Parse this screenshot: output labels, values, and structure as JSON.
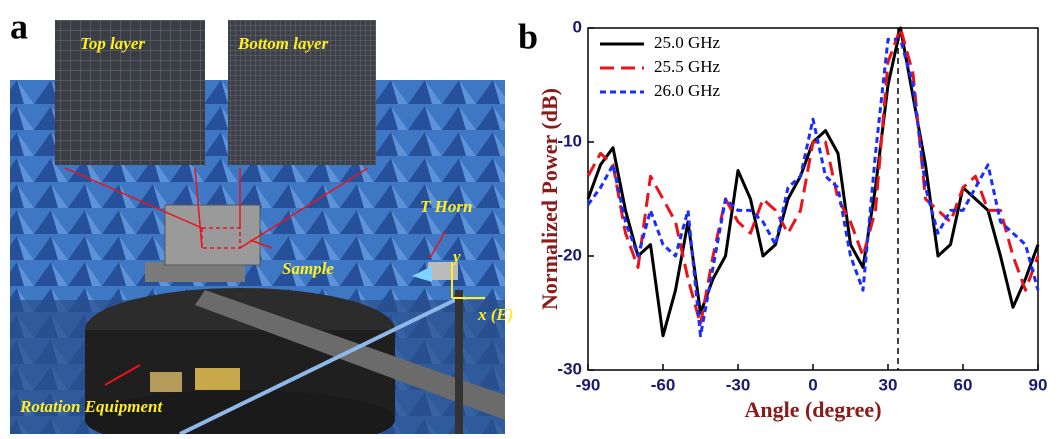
{
  "panel_a": {
    "label": "a",
    "top_label": "Top layer",
    "bottom_label": "Bottom layer",
    "sample": "Sample",
    "horn": "T Horn",
    "y_axis": "y",
    "x_axis": "x (E)",
    "rotation": "Rotation Equipment"
  },
  "chart_data": {
    "type": "line",
    "panel_label": "b",
    "x_label": "Angle (degree)",
    "y_label": "Normalized Power (dB)",
    "x": [
      -90,
      -85,
      -80,
      -75,
      -70,
      -65,
      -60,
      -55,
      -50,
      -45,
      -40,
      -35,
      -30,
      -25,
      -20,
      -15,
      -10,
      -5,
      0,
      5,
      10,
      15,
      20,
      25,
      30,
      35,
      40,
      45,
      50,
      55,
      60,
      65,
      70,
      75,
      80,
      85,
      90
    ],
    "series": [
      {
        "name": "25.0 GHz",
        "color": "#000000",
        "dash": "solid",
        "values": [
          -15,
          -12,
          -10.5,
          -16,
          -20,
          -19,
          -27,
          -23,
          -17,
          -25,
          -22,
          -20,
          -12.5,
          -15,
          -20,
          -19,
          -15,
          -13,
          -10,
          -9,
          -11,
          -19,
          -21,
          -14,
          -5,
          0,
          -6,
          -12,
          -20,
          -19,
          -14,
          -15,
          -16,
          -20,
          -24.5,
          -22,
          -19
        ]
      },
      {
        "name": "25.5 GHz",
        "color": "#e8141b",
        "dash": "dashed",
        "values": [
          -13,
          -11,
          -12,
          -18,
          -21,
          -13,
          -15,
          -17,
          -22,
          -26,
          -20,
          -15,
          -17,
          -18,
          -15,
          -16,
          -18,
          -16,
          -10,
          -10,
          -15,
          -17,
          -20,
          -16,
          -3,
          0,
          -4,
          -15,
          -16,
          -17,
          -14,
          -13,
          -16,
          -16,
          -20,
          -23,
          -20
        ]
      },
      {
        "name": "26.0 GHz",
        "color": "#1a2dff",
        "dash": "dotted",
        "values": [
          -15.5,
          -14,
          -12,
          -17,
          -20,
          -16,
          -19,
          -20,
          -16,
          -27,
          -21,
          -15,
          -16,
          -16,
          -17,
          -19,
          -14,
          -13,
          -8,
          -13,
          -14,
          -20,
          -23,
          -11,
          -1,
          -1,
          -5,
          -14,
          -18,
          -16,
          -16,
          -14,
          -12,
          -17,
          -18,
          -19,
          -23
        ]
      }
    ],
    "marker_x": 34,
    "xlim": [
      -90,
      90
    ],
    "xticks": [
      -90,
      -60,
      -30,
      0,
      30,
      60,
      90
    ],
    "ylim": [
      -30,
      0
    ],
    "yticks": [
      -30,
      -20,
      -10,
      0
    ],
    "legend": "upper left"
  }
}
